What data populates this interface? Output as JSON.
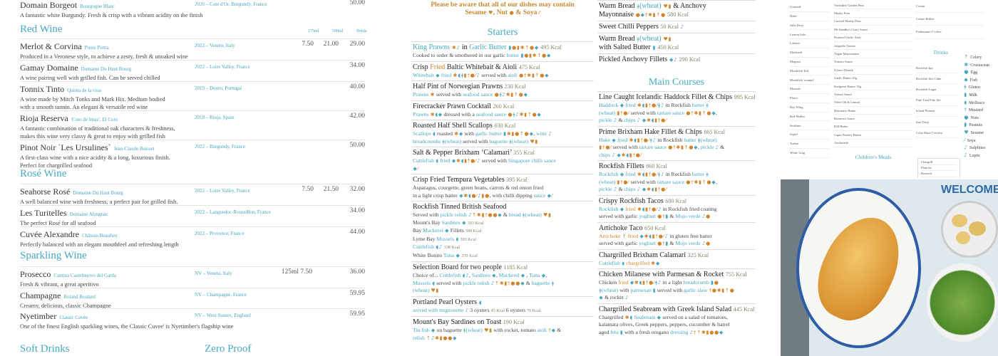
{
  "wine": {
    "top": {
      "name": "Domain Borgeot",
      "producer": "Bourgogne Blanc",
      "region": "2020 – Cote d'Or, Burgundy, France",
      "prices": [
        "",
        "",
        "50.00"
      ],
      "desc": [
        "A fantastic white Burgundy. Fresh & crisp with a vibrant acidity on the finish"
      ]
    },
    "red": {
      "title": "Red Wine",
      "cols": [
        "175ml",
        "500ml",
        "Bottle"
      ],
      "items": [
        {
          "name": "Merlot & Corvina",
          "producer": "Ponte Pietra",
          "region": "2022 – Veneto, Italy",
          "prices": [
            "7.50",
            "21.00",
            "29.00"
          ],
          "desc": [
            "Produced in a Veronese style, to achieve a zesty, fresh & unoaked wine"
          ]
        },
        {
          "name": "Gamay Domaine",
          "producer": "Domaine Du Haut Bourg",
          "region": "2022 – Loire Valley, France",
          "prices": [
            "",
            "",
            "34.00"
          ],
          "desc": [
            "A wine pairing well with grilled fish. Can be served chilled"
          ]
        },
        {
          "name": "Tonnix Tinto",
          "producer": "Quinta de la rosa",
          "region": "2019 – Douro, Portugal",
          "prices": [
            "",
            "",
            "40.00"
          ],
          "desc": [
            "A wine made by Mitch Tonks and Mark Hix. Medium bodied",
            "with a smooth tannin. An elegant & versatile red wine"
          ]
        },
        {
          "name": "Rioja Reserva",
          "producer": "'Coto de Imaz', El Coto",
          "region": "2018 – Rioja, Spain",
          "prices": [
            "",
            "",
            "42.00"
          ],
          "desc": [
            "A fantastic combination of traditional oak characters & freshness,",
            "makes this wine very classy & great to enjoy with grilled fish"
          ]
        },
        {
          "name": "Pinot Noir `Les Ursulines`",
          "producer": "Jean-Claude Boisset",
          "region": "2022 – Burgundy, France",
          "prices": [
            "",
            "",
            "50.00"
          ],
          "desc": [
            "A first-class wine with a nice acidity & a long, luxurious finish.",
            "Perfect for chargrilled seafood"
          ]
        }
      ]
    },
    "rose": {
      "title": "Rosé Wine",
      "items": [
        {
          "name": "Seahorse Rosé",
          "producer": "Domaine Du Haut Bourg",
          "region": "2022 – Loire Valley, France",
          "prices": [
            "7.50",
            "21.50",
            "32.00"
          ],
          "desc": [
            "A well balanced wine with freshness, a perfect pair for grilled fish."
          ]
        },
        {
          "name": "Les Turitelles",
          "producer": "Domaine Alzugnac",
          "region": "2022 – Languedoc-Roussillon, France",
          "prices": [
            "",
            "",
            "34.00"
          ],
          "desc": [
            "The perfect Rosé for all seafood"
          ]
        },
        {
          "name": "Cuvée Alexandre",
          "producer": "Château Beaulieu",
          "region": "2022 – Provence, France",
          "prices": [
            "",
            "",
            "44.00"
          ],
          "desc": [
            "Perfectly balanced with an elegant mouthfeel and refreshing length"
          ]
        }
      ]
    },
    "sparkling": {
      "title": "Sparkling Wine",
      "items": [
        {
          "name": "Prosecco",
          "producer": "Cantina Castelnuovo del Garda",
          "region": "NV – Veneto, Italy",
          "glass": "125ml 7.50",
          "prices": [
            "",
            "",
            "36.00"
          ],
          "desc": [
            "Fresh & vibrant, a great aperitivo"
          ]
        },
        {
          "name": "Champagne",
          "producer": "Roland Boulard",
          "region": "NV – Champagne, France",
          "prices": [
            "",
            "",
            "59.95"
          ],
          "desc": [
            "Creamy, delicious, classic Champagne"
          ]
        },
        {
          "name": "Nyetimber",
          "producer": "Classic Cuvée",
          "region": "NV – West Sussex, England",
          "prices": [
            "",
            "",
            "59.95"
          ],
          "desc": [
            "One of the finest English sparkling wines, the Classic Cuvee' is Nyetimber's flagship wine"
          ]
        }
      ]
    },
    "soft": "Soft Drinks",
    "zero": "Zero Proof"
  },
  "notice": [
    "Please be aware that all of our dishes may contain",
    "Sesame ",
    "i:s",
    ", Nut ",
    "i:n",
    " & Soya ",
    "i:y"
  ],
  "starters": {
    "title": "Starters",
    "items": [
      {
        "t": [
          "b:King Prawns ",
          "i:cl",
          " in ",
          "b:Garlic Butter ",
          "i:mepcknf",
          " ",
          "k:495 Kcal"
        ],
        "d": [
          [
            "Cooked to order & smothered in our garlic ",
            "b:butter ",
            "i:mepcknf"
          ]
        ]
      },
      {
        "t": [
          "Crisp ",
          "o:Fried",
          " Baltic Whitebait & Aioli ",
          "k:475 Kcal"
        ],
        "d": [
          [
            "b:Whitebait ",
            "i:f",
            "b: fried ",
            "i:cogpuey l",
            " served with ",
            "b:aioli ",
            "i:eucpknf"
          ]
        ]
      },
      {
        "t": [
          "Half Pint of Norwegian Prawns ",
          "k:230 Kcal"
        ],
        "d": [
          [
            "b:Prawns ",
            "i:c",
            " served with ",
            "b:seafood sauce ",
            "i:eglcpknf"
          ]
        ]
      },
      {
        "t": [
          "Firecracker Prawn Cocktail ",
          "k:260 Kcal"
        ],
        "d": [
          [
            "b:Prawns ",
            "i:cof",
            " dressed with a ",
            "b:seafood sauce ",
            "i:eglcpknf"
          ]
        ]
      },
      {
        "t": [
          "Roasted Half Shell Scallops ",
          "k:630 Kcal"
        ],
        "d": [
          [
            "b:Scallops ",
            "i:o",
            " roasted ",
            "i:cf",
            " with ",
            "b:garlic butter ",
            "i:mcpeknf",
            ", ",
            "b:wine ",
            "i:l"
          ],
          [
            "b:breadcrumbs ",
            "i:g",
            "b:(wheat)",
            " served with ",
            "b:baguette ",
            "i:g",
            "b:(wheat) ",
            "i:sp"
          ]
        ]
      },
      {
        "t": [
          "Salt & Pepper Brixham ‘Calamari’ ",
          "k:355 Kcal"
        ],
        "d": [
          [
            "b:Cuttlefish ",
            "i:o",
            "b: fried ",
            "i:fcopuey l",
            " served with ",
            "b:Singapore chilli sauce"
          ],
          [
            "i:fy"
          ]
        ]
      },
      {
        "t": [
          "Crisp Fried Tempura Vegetables ",
          "k:395 Kcal"
        ],
        "d": [
          [
            "Asparagus, courgette, green beans, carrots & red onion fried"
          ],
          [
            "in a light crisp batter ",
            "i:fcoeyl pe",
            ", with chilli dipping ",
            "b:sauce ",
            "i:fy"
          ]
        ]
      },
      {
        "t": [
          "Rockfish Tinned British Seafood"
        ],
        "d": [
          [
            "Served with ",
            "b:pickle relish ",
            "i:lkcpuenf",
            " & ",
            "b:bread ",
            "i:g",
            "b:(wheat) ",
            "i:sp"
          ],
          [
            "Mount's Bay ",
            "b:Sardines ",
            "i:f",
            " ",
            "k:393 Kcal"
          ],
          [
            "Bay ",
            "b:Mackerel ",
            "i:f",
            " Fillets ",
            "k:390 Kcal"
          ],
          [
            "Lyme Bay ",
            "b:Mussels ",
            "i:o",
            " ",
            "k:393 Kcal"
          ],
          [
            "b:Cuttlefish ",
            "i:ol",
            " ",
            "k:338 Kcal"
          ],
          [
            "White Bonito ",
            "b:Tuna ",
            "i:f",
            " ",
            "k:370 Kcal"
          ]
        ]
      },
      {
        "t": [
          "Selection Board for two people ",
          "k:1185 Kcal"
        ],
        "d": [
          [
            "Choice of... ",
            "b:Cuttlefish ",
            "i:ol",
            ", ",
            "b:Sardines ",
            "i:f",
            ", ",
            "b:Mackerel ",
            "i:f",
            " , ",
            "b:Tuna ",
            "i:f",
            ","
          ],
          [
            "b:Mussels ",
            "i:o",
            " served with ",
            "b:pickle relish ",
            "i:lkcpuenf",
            " & ",
            "b:baguette ",
            "i:g"
          ],
          [
            "b:(wheat) ",
            "i:sp"
          ]
        ]
      },
      {
        "t": [
          "Portland Pearl Oysters ",
          "i:o"
        ],
        "d": [
          [
            "b:served with mignonette ",
            "i:l",
            " 3 oysters ",
            "k:45 Kcal",
            "   6 oysters ",
            "k:70 Kcal"
          ]
        ]
      },
      {
        "t": [
          "Mount's Bay Sardines on Toast ",
          "k:190 Kcal"
        ],
        "d": [
          [
            "b:Tin fish ",
            "i:f",
            " on baguette ",
            "i:g",
            "b:(wheat) ",
            "i:sp",
            " with rocket, tomato ",
            "b:aioli ",
            "i:uf",
            " &"
          ],
          [
            "b:relish ",
            "i:klcpenf"
          ]
        ]
      }
    ]
  },
  "sides": [
    {
      "t": [
        "Warm Bread ",
        "i:g",
        "b:(wheat) ",
        "i:sp",
        " & Anchovy"
      ],
      "t2": [
        "Mayonnaise ",
        "i:efucpkn",
        " ",
        "k:580 Kcal"
      ]
    },
    {
      "t": [
        "Sweet Chilli Peppers ",
        "k:50 Kcal ",
        "i:l"
      ]
    },
    {
      "t": [
        "Warm Bread ",
        "i:g",
        "b:(wheat) ",
        "i:sp"
      ],
      "t2": [
        "with Salted Butter ",
        "i:m",
        " ",
        "k:450 Kcal"
      ]
    },
    {
      "t": [
        "Pickled  Anchovy Fillets ",
        "i:fl",
        " ",
        "k:290 Kcal"
      ]
    }
  ],
  "mains": {
    "title": "Main Courses",
    "items": [
      {
        "t": [
          "Line Caught Icelandic Haddock Fillet & Chips ",
          "k:995 Kcal"
        ],
        "d": [
          [
            "b:Haddock ",
            "i:f",
            "b: fried ",
            "i:copuey gl",
            " in Rockfish ",
            "b:batter ",
            "i:g"
          ],
          [
            "b:(wheat) ",
            "i:pue y",
            " served with ",
            "b:tartare sauce ",
            "i:eucpknf",
            ","
          ],
          [
            "b:pickle ",
            "i:l",
            " & ",
            "b:chips ",
            "i:l",
            " ",
            "i:fcopuey"
          ]
        ]
      },
      {
        "t": [
          "Prime Brixham Hake Fillet & Chips ",
          "k:865 Kcal"
        ],
        "d": [
          [
            "b:Hake ",
            "i:f",
            "b: fried ",
            "i:copuey gl",
            " in Rockfish ",
            "b:batter ",
            "i:g",
            "b:(wheat)"
          ],
          [
            "i:pue y",
            " served with ",
            "b:tartare sauce ",
            "i:eucpknf",
            ", ",
            "b:pickle ",
            "i:l",
            " &"
          ],
          [
            "b:chips ",
            "i:l",
            " ",
            "i:fcopuey"
          ]
        ]
      },
      {
        "t": [
          "Rockfish Fillets ",
          "k:860 Kcal"
        ],
        "d": [
          [
            "b:Rockfish ",
            "i:f",
            "b: fried ",
            "i:copuey gl",
            " in Rockfish ",
            "b:batter ",
            "i:g"
          ],
          [
            "b:(wheat) ",
            "i:pue y",
            " served with ",
            "b:tartare sauce ",
            "i:eucpknf",
            ","
          ],
          [
            "b:pickle ",
            "i:l",
            " & ",
            "b:chips ",
            "i:l",
            " ",
            "i:fcopuey"
          ]
        ]
      },
      {
        "t": [
          "Crispy Rockfish Tacos ",
          "k:600 Kcal"
        ],
        "d": [
          [
            "b:Rockfish ",
            "i:f",
            "o: fried ",
            "i:copuey l",
            " in Rockfish fried coating"
          ],
          [
            "served with garlic ",
            "b:yoghurt ",
            "i:eum",
            " & ",
            "b:Mojo verde ",
            "i:ln"
          ]
        ]
      },
      {
        "t": [
          "Artichoke Taco ",
          "k:650 Kcal"
        ],
        "d": [
          [
            "o:Artichoke ",
            "i:k",
            "o: fried ",
            "i:fcopuey l",
            " in gluten free batter"
          ],
          [
            "served with garlic ",
            "b:yoghurt ",
            "i:eum",
            " & ",
            "b:Mojo verde ",
            "i:ln"
          ]
        ]
      },
      {
        "t": [
          "Chargrilled Brixham Calamari ",
          "k:325 Kcal"
        ],
        "d": [
          [
            "b:Cuttlefish ",
            "i:o",
            "o: chargrilled ",
            "i:cf"
          ]
        ]
      },
      {
        "t": [
          "Chicken Milanese with Parmesan & Rocket ",
          "k:755 Kcal"
        ],
        "d": [
          [
            "Chicken ",
            "o:fried ",
            "i:fcopuey gl",
            " in a light ",
            "b:breadcrumb ",
            "i:me"
          ],
          [
            "i:g",
            "b:(wheat)",
            " with ",
            "b:parmesan ",
            "i:m",
            " served with ",
            "b:garlic slaw ",
            "i:uecpkn"
          ],
          [
            "i:f",
            " & rocket ",
            "i:l"
          ]
        ]
      },
      {
        "t": [
          "Chargrilled Seabream with Greek Island Salad ",
          "k:445 Kcal"
        ],
        "d": [
          [
            "Chargrilled ",
            "i:co",
            " ",
            "b:Seabream ",
            "i:f",
            " served on a salad of tomatoes,"
          ],
          [
            "kalamata olives, Greek peppers, peppers, cucumber & barrel"
          ],
          [
            "aged ",
            "b:feta ",
            "i:m",
            " with a fresh oregano ",
            "b:dressing ",
            "i:lukcpenf"
          ]
        ]
      }
    ]
  },
  "mini": {
    "fish": [
      "Gurnard",
      "Hake",
      "John Dory",
      "Lemon Sole",
      "Lobster",
      "Mackerel",
      "Megrim",
      "Monkfish Tail",
      "Monkfish 'scampi'",
      "Mussels",
      "Plaice",
      "Ray Wing",
      "Red Mullet",
      "Sardines",
      "Squid",
      "Turbot",
      "White Ling"
    ],
    "sauces": [
      "Yorkshire Garden Peas",
      "Mushy Peas",
      "Curried Mushy Peas",
      "Mr Sandhu's Curry Sauce",
      "Roasted Garlic Aioli",
      "Jalapeño Tartare",
      "Vegan Mayonnaise",
      "Tomato Sauce",
      "Oyster Drizzle",
      "Garlic Butter 35g",
      "Kedgeree Butter 35g",
      "Tartare Sauce",
      "Olive Oil & Lemon",
      "Bearnaise Butter",
      "Romesco Sauce",
      "Dill Butter",
      "Caper Parsley Butter",
      "Anchoiade"
    ],
    "desserts": [
      "Cream",
      "Crème Brûlée",
      "Fisherman's Coffee"
    ],
    "drinks_title": "Drinks",
    "drinks": [
      "Rockfish Ipa",
      "Rockfish Sea Cider",
      "Rockfish Lager",
      "Pine Trail Pale Ale",
      "Island Pioneer",
      "Sun Drop",
      "Coba Mara Cerveza"
    ],
    "children_title": "Children's Meals",
    "children_items": [
      "Chargrill",
      "Plancha",
      "Roasted"
    ],
    "legend": [
      "Celery",
      "Crustacean",
      "Egg",
      "Fish",
      "Gluten",
      "Milk",
      "Molluscs",
      "Mustard",
      "Nuts",
      "Peanuts",
      "Sesame",
      "Soya",
      "Sulphites",
      "Lupin"
    ]
  },
  "photo": {
    "menu_word": "WELCOME"
  },
  "colors": {
    "accent": "#46a9c2",
    "orange": "#d1842a",
    "plate_rim": "#2e5da8"
  }
}
